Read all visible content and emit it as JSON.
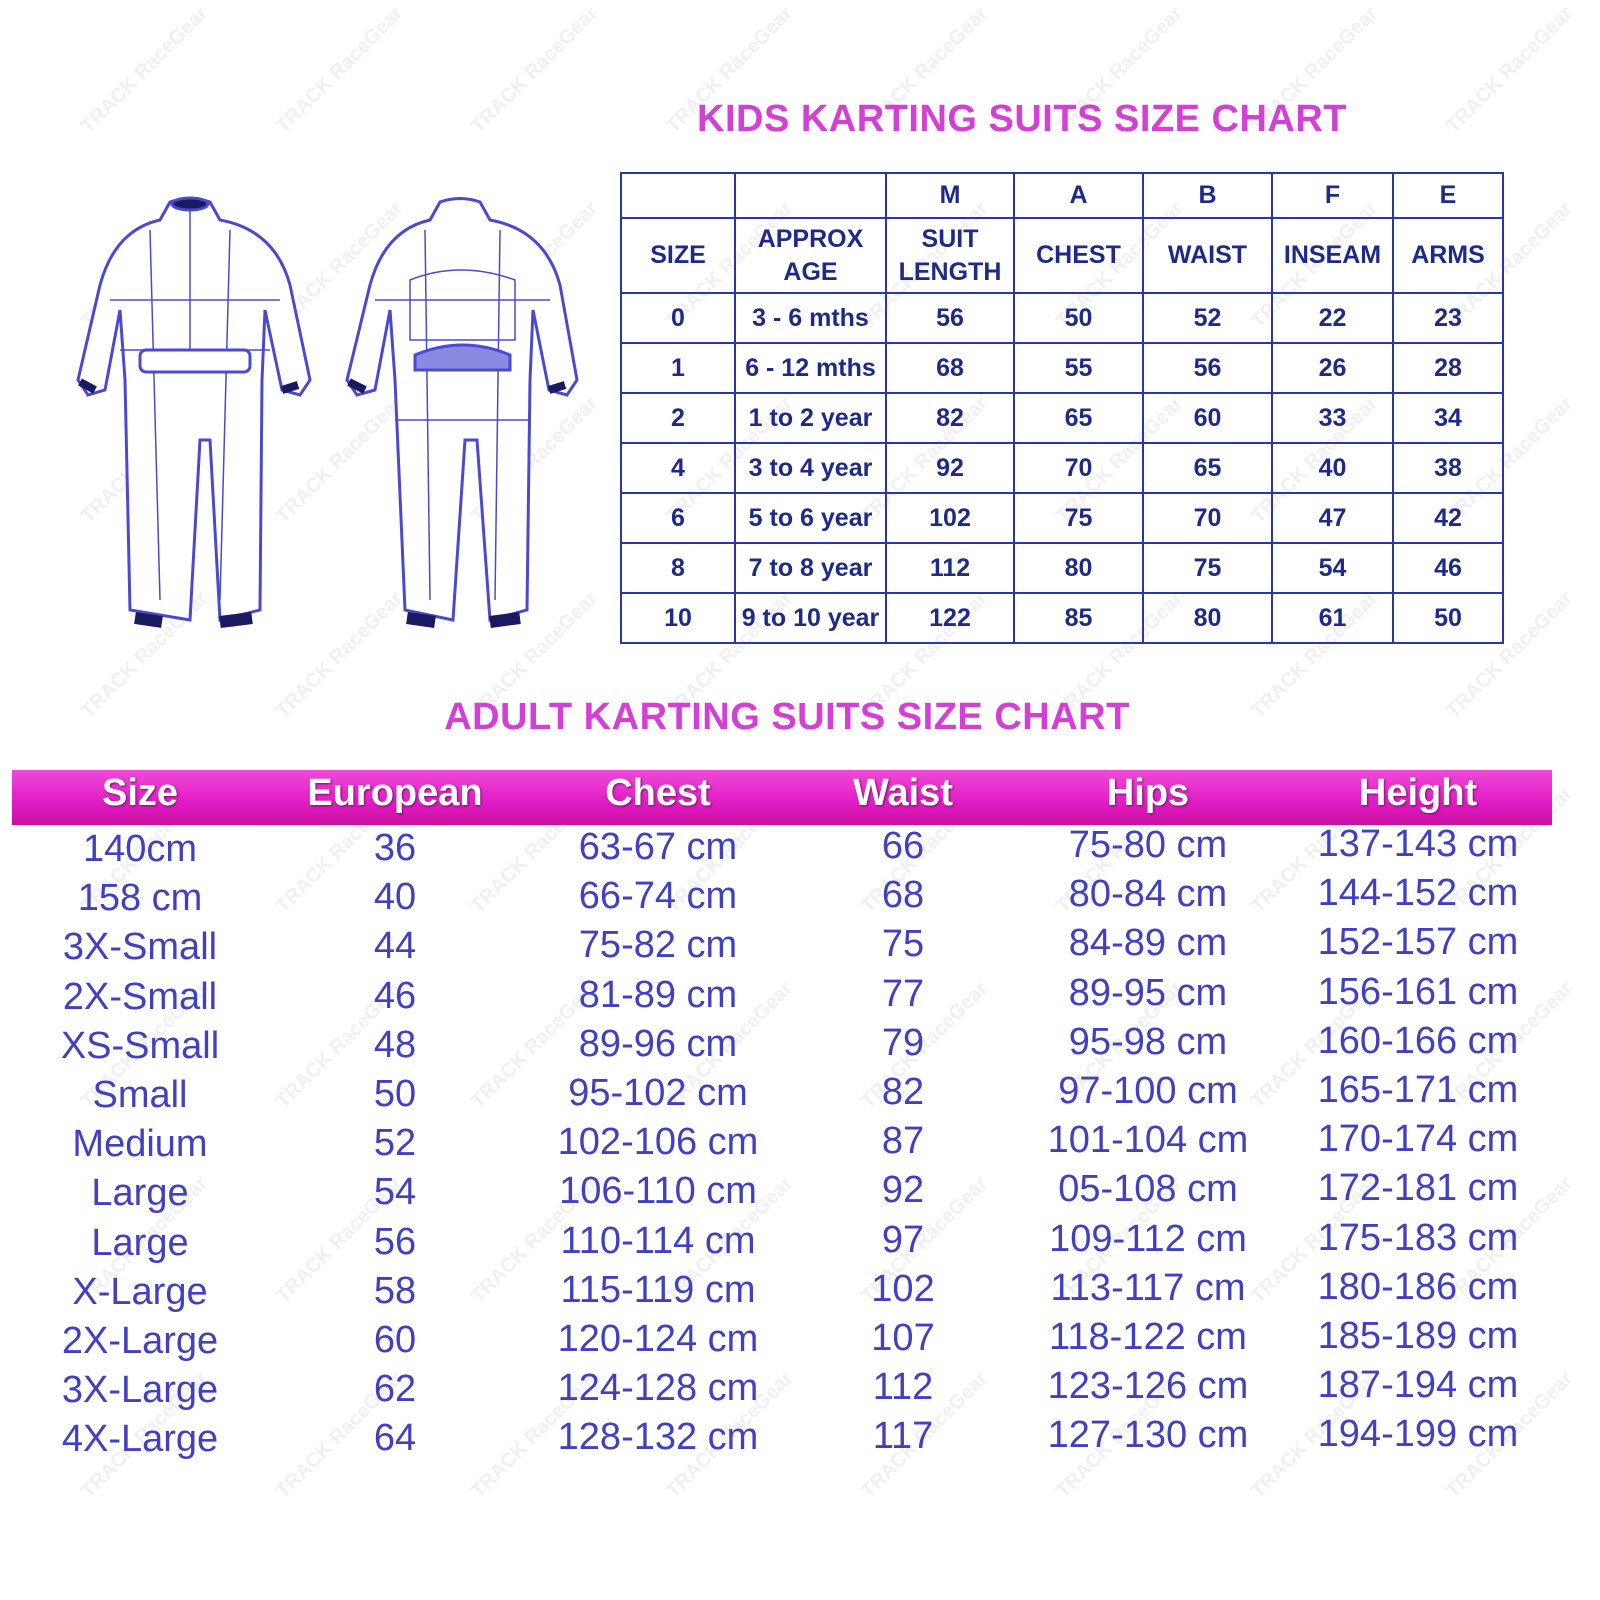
{
  "watermark": "TRACK RaceGear",
  "colors": {
    "title": "#d43fd6",
    "table_text": "#1e2a8a",
    "adult_header_bar": "#e21bc4",
    "adult_text": "#4040c0"
  },
  "kids": {
    "title": "KIDS KARTING SUITS SIZE CHART",
    "letters": [
      "",
      "",
      "M",
      "A",
      "B",
      "F",
      "E"
    ],
    "headers": [
      "SIZE",
      "APPROX AGE",
      "SUIT LENGTH",
      "CHEST",
      "WAIST",
      "INSEAM",
      "ARMS"
    ],
    "rows": [
      [
        "0",
        "3 - 6 mths",
        "56",
        "50",
        "52",
        "22",
        "23"
      ],
      [
        "1",
        "6 - 12 mths",
        "68",
        "55",
        "56",
        "26",
        "28"
      ],
      [
        "2",
        "1 to 2 year",
        "82",
        "65",
        "60",
        "33",
        "34"
      ],
      [
        "4",
        "3 to 4 year",
        "92",
        "70",
        "65",
        "40",
        "38"
      ],
      [
        "6",
        "5 to 6 year",
        "102",
        "75",
        "70",
        "47",
        "42"
      ],
      [
        "8",
        "7 to 8 year",
        "112",
        "80",
        "75",
        "54",
        "46"
      ],
      [
        "10",
        "9 to 10 year",
        "122",
        "85",
        "80",
        "61",
        "50"
      ]
    ]
  },
  "adult": {
    "title": "ADULT KARTING SUITS SIZE CHART",
    "headers": [
      "Size",
      "European",
      "Chest",
      "Waist",
      "Hips",
      "Height"
    ],
    "rows": [
      [
        "140cm",
        "36",
        "63-67 cm",
        "66",
        "75-80 cm",
        "137-143 cm"
      ],
      [
        "158 cm",
        "40",
        "66-74 cm",
        "68",
        "80-84 cm",
        "144-152 cm"
      ],
      [
        "3X-Small",
        "44",
        "75-82 cm",
        "75",
        "84-89 cm",
        "152-157 cm"
      ],
      [
        "2X-Small",
        "46",
        "81-89 cm",
        "77",
        "89-95 cm",
        "156-161 cm"
      ],
      [
        "XS-Small",
        "48",
        "89-96 cm",
        "79",
        "95-98 cm",
        "160-166 cm"
      ],
      [
        "Small",
        "50",
        "95-102 cm",
        "82",
        "97-100 cm",
        "165-171 cm"
      ],
      [
        "Medium",
        "52",
        "102-106 cm",
        "87",
        "101-104 cm",
        "170-174 cm"
      ],
      [
        "Large",
        "54",
        "106-110 cm",
        "92",
        "05-108 cm",
        "172-181 cm"
      ],
      [
        "Large",
        "56",
        "110-114 cm",
        "97",
        "109-112 cm",
        "175-183 cm"
      ],
      [
        "X-Large",
        "58",
        "115-119 cm",
        "102",
        "113-117 cm",
        "180-186 cm"
      ],
      [
        "2X-Large",
        "60",
        "120-124 cm",
        "107",
        "118-122 cm",
        "185-189 cm"
      ],
      [
        "3X-Large",
        "62",
        "124-128 cm",
        "112",
        "123-126 cm",
        "187-194 cm"
      ],
      [
        "4X-Large",
        "64",
        "128-132 cm",
        "117",
        "127-130 cm",
        "194-199 cm"
      ]
    ]
  }
}
